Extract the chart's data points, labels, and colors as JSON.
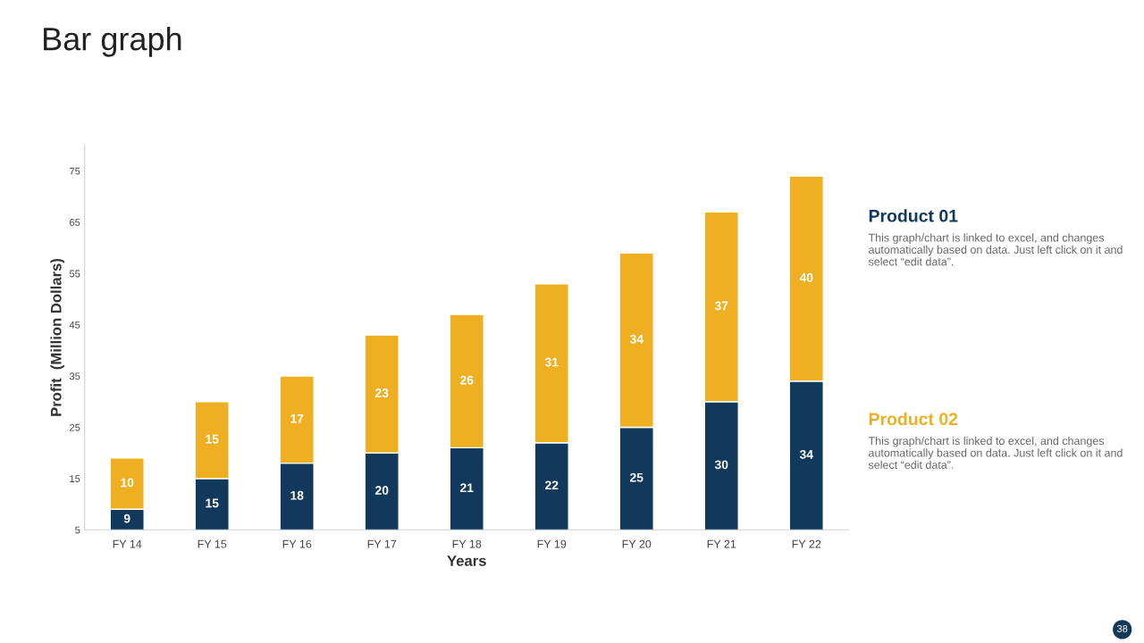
{
  "chart_data": {
    "type": "bar",
    "title": "Bar graph",
    "xlabel": "Years",
    "ylabel": "Profit  (Million Dollars)",
    "categories": [
      "FY 14",
      "FY 15",
      "FY 16",
      "FY 17",
      "FY 18",
      "FY 19",
      "FY 20",
      "FY 21",
      "FY 22"
    ],
    "series": [
      {
        "name": "Product 01",
        "color": "#12395b",
        "values": [
          9,
          15,
          18,
          20,
          21,
          22,
          25,
          30,
          34
        ]
      },
      {
        "name": "Product 02",
        "color": "#eeb022",
        "values": [
          10,
          15,
          17,
          23,
          26,
          31,
          34,
          37,
          40
        ]
      }
    ],
    "stacked": true,
    "data_labels": true,
    "ylim": [
      5,
      80
    ],
    "yticks": [
      5,
      15,
      25,
      35,
      45,
      55,
      65,
      75
    ],
    "grid": false,
    "annotations": [
      "This graph/chart is linked to excel, and changes automatically based on data. Just left click on it and select “edit data”.",
      "This graph/chart is linked to excel, and changes automatically based on data. Just left click on it and select “edit data”.",
      "38"
    ]
  }
}
